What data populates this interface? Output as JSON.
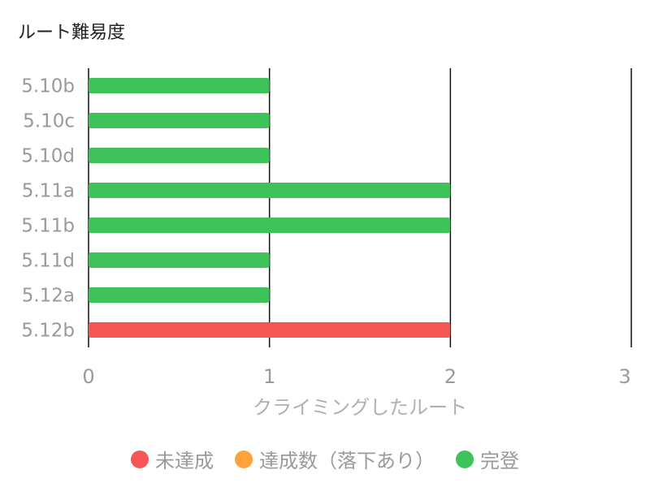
{
  "title": "ルート難易度",
  "chart_data": {
    "type": "bar",
    "orientation": "horizontal",
    "stacked": true,
    "title": "ルート難易度",
    "xlabel": "クライミングしたルート",
    "ylabel": "",
    "xlim": [
      0,
      3
    ],
    "x_ticks": [
      "0",
      "1",
      "2",
      "3"
    ],
    "grid": true,
    "legend_position": "bottom",
    "categories": [
      "5.10b",
      "5.10c",
      "5.10d",
      "5.11a",
      "5.11b",
      "5.11d",
      "5.12a",
      "5.12b"
    ],
    "series": [
      {
        "name": "未達成",
        "color": "#f55555",
        "values": [
          0,
          0,
          0,
          0,
          0,
          0,
          0,
          2
        ]
      },
      {
        "name": "達成数（落下あり）",
        "color": "#ffa23a",
        "values": [
          0,
          0,
          0,
          0,
          0,
          0,
          0,
          0
        ]
      },
      {
        "name": "完登",
        "color": "#3ec35a",
        "values": [
          1,
          1,
          1,
          2,
          2,
          1,
          1,
          0
        ]
      }
    ]
  }
}
